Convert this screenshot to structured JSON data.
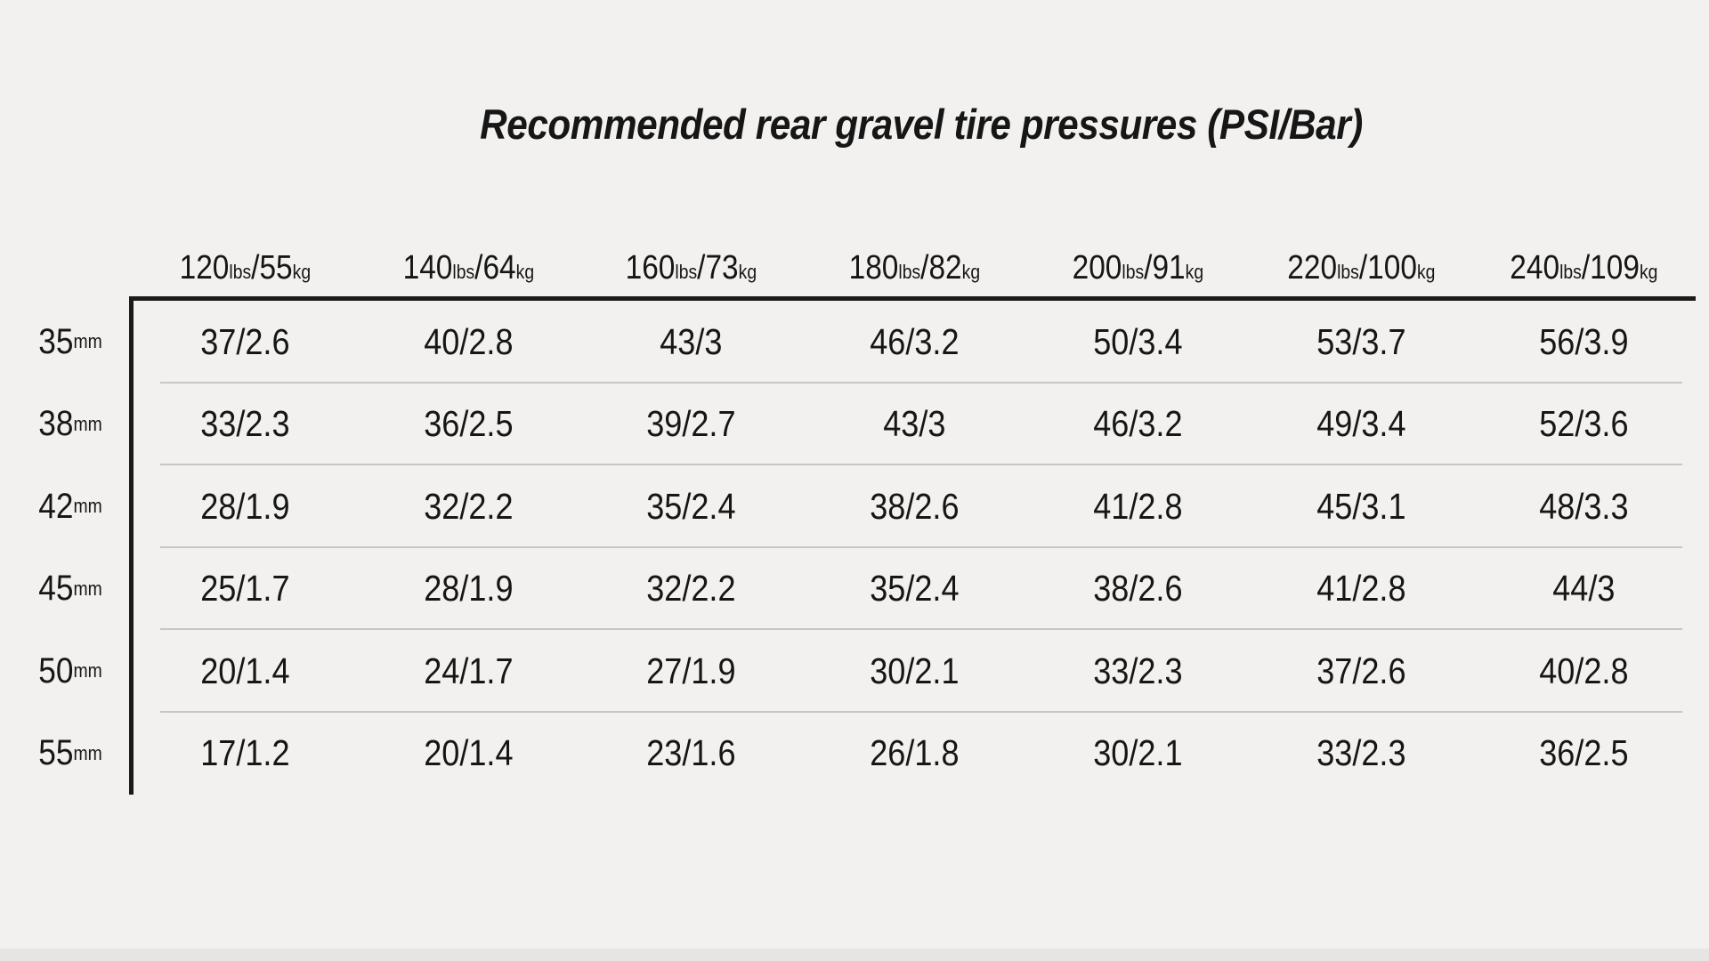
{
  "title": "Recommended rear gravel tire pressures (PSI/Bar)",
  "units": {
    "lbs": "lbs",
    "kg": "kg",
    "mm": "mm",
    "sep": "/"
  },
  "table": {
    "column_headers": [
      {
        "lbs": "120",
        "kg": "55"
      },
      {
        "lbs": "140",
        "kg": "64"
      },
      {
        "lbs": "160",
        "kg": "73"
      },
      {
        "lbs": "180",
        "kg": "82"
      },
      {
        "lbs": "200",
        "kg": "91"
      },
      {
        "lbs": "220",
        "kg": "100"
      },
      {
        "lbs": "240",
        "kg": "109"
      }
    ],
    "rows": [
      {
        "tire_width": "35",
        "values": [
          "37/2.6",
          "40/2.8",
          "43/3",
          "46/3.2",
          "50/3.4",
          "53/3.7",
          "56/3.9"
        ]
      },
      {
        "tire_width": "38",
        "values": [
          "33/2.3",
          "36/2.5",
          "39/2.7",
          "43/3",
          "46/3.2",
          "49/3.4",
          "52/3.6"
        ]
      },
      {
        "tire_width": "42",
        "values": [
          "28/1.9",
          "32/2.2",
          "35/2.4",
          "38/2.6",
          "41/2.8",
          "45/3.1",
          "48/3.3"
        ]
      },
      {
        "tire_width": "45",
        "values": [
          "25/1.7",
          "28/1.9",
          "32/2.2",
          "35/2.4",
          "38/2.6",
          "41/2.8",
          "44/3"
        ]
      },
      {
        "tire_width": "50",
        "values": [
          "20/1.4",
          "24/1.7",
          "27/1.9",
          "30/2.1",
          "33/2.3",
          "37/2.6",
          "40/2.8"
        ]
      },
      {
        "tire_width": "55",
        "values": [
          "17/1.2",
          "20/1.4",
          "23/1.6",
          "26/1.8",
          "30/2.1",
          "33/2.3",
          "36/2.5"
        ]
      }
    ]
  },
  "chart_data": {
    "type": "table",
    "title": "Recommended rear gravel tire pressures (PSI/Bar)",
    "value_format": "PSI/Bar",
    "column_headers": [
      "120lbs/55kg",
      "140lbs/64kg",
      "160lbs/73kg",
      "180lbs/82kg",
      "200lbs/91kg",
      "220lbs/100kg",
      "240lbs/109kg"
    ],
    "row_headers": [
      "35mm",
      "38mm",
      "42mm",
      "45mm",
      "50mm",
      "55mm"
    ],
    "cells": [
      [
        "37/2.6",
        "40/2.8",
        "43/3",
        "46/3.2",
        "50/3.4",
        "53/3.7",
        "56/3.9"
      ],
      [
        "33/2.3",
        "36/2.5",
        "39/2.7",
        "43/3",
        "46/3.2",
        "49/3.4",
        "52/3.6"
      ],
      [
        "28/1.9",
        "32/2.2",
        "35/2.4",
        "38/2.6",
        "41/2.8",
        "45/3.1",
        "48/3.3"
      ],
      [
        "25/1.7",
        "28/1.9",
        "32/2.2",
        "35/2.4",
        "38/2.6",
        "41/2.8",
        "44/3"
      ],
      [
        "20/1.4",
        "24/1.7",
        "27/1.9",
        "30/2.1",
        "33/2.3",
        "37/2.6",
        "40/2.8"
      ],
      [
        "17/1.2",
        "20/1.4",
        "23/1.6",
        "26/1.8",
        "30/2.1",
        "33/2.3",
        "36/2.5"
      ]
    ]
  },
  "colors": {
    "background": "#f2f1ef",
    "text": "#161616",
    "frame": "#1a1a1a",
    "separator": "#c7c6c4"
  }
}
